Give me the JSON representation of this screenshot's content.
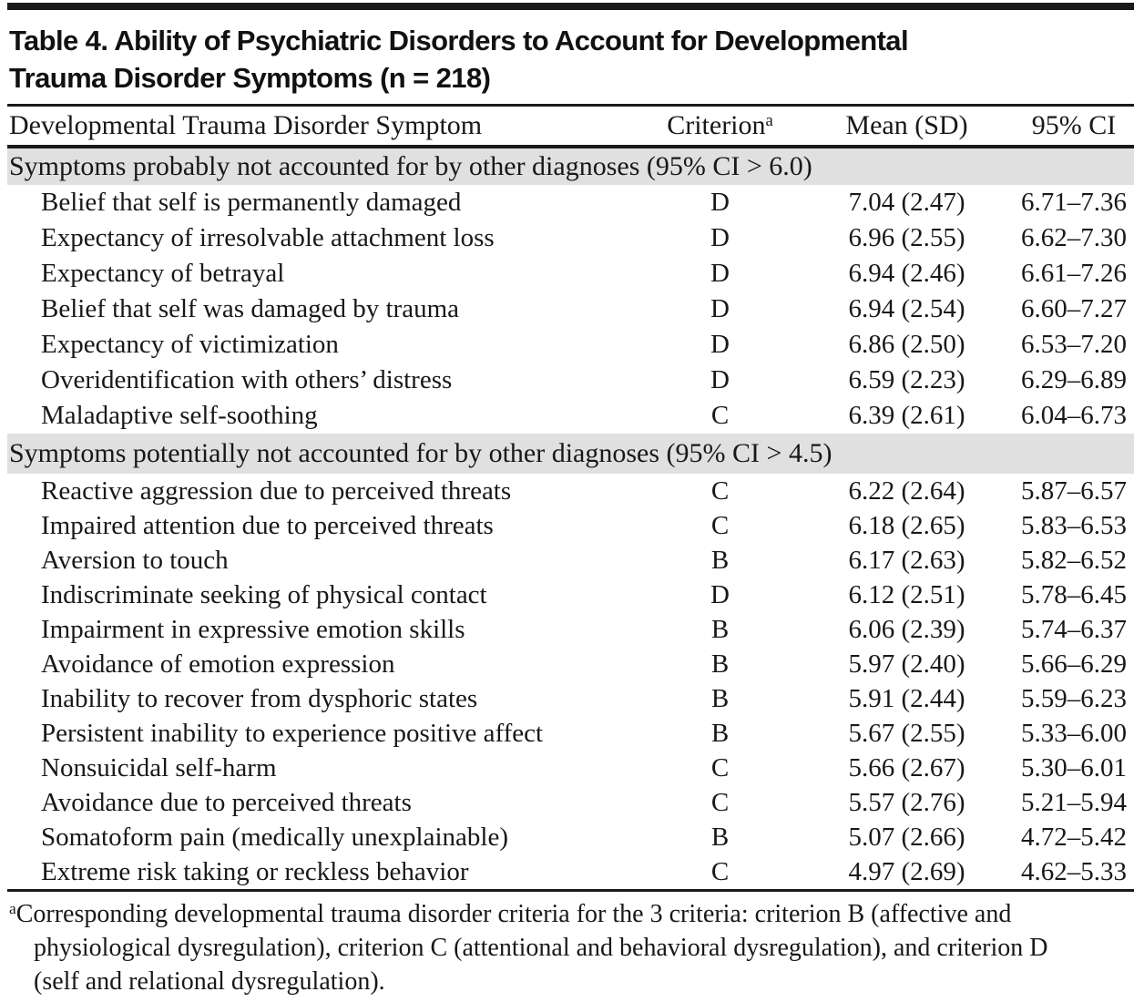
{
  "title": {
    "line1": "Table 4. Ability of Psychiatric Disorders to Account for Developmental",
    "line2": "Trauma Disorder Symptoms (n = 218)"
  },
  "header": {
    "symptom": "Developmental Trauma Disorder Symptom",
    "criterion": "Criterion",
    "criterion_sup": "a",
    "mean_sd": "Mean (SD)",
    "ci": "95% CI"
  },
  "sections": [
    {
      "header": "Symptoms probably not accounted for by other diagnoses (95% CI > 6.0)",
      "rows": [
        {
          "symptom": "Belief that self is permanently damaged",
          "criterion": "D",
          "mean_sd": "7.04 (2.47)",
          "ci": "6.71–7.36"
        },
        {
          "symptom": "Expectancy of irresolvable attachment loss",
          "criterion": "D",
          "mean_sd": "6.96 (2.55)",
          "ci": "6.62–7.30"
        },
        {
          "symptom": "Expectancy of betrayal",
          "criterion": "D",
          "mean_sd": "6.94 (2.46)",
          "ci": "6.61–7.26"
        },
        {
          "symptom": "Belief that self was damaged by trauma",
          "criterion": "D",
          "mean_sd": "6.94 (2.54)",
          "ci": "6.60–7.27"
        },
        {
          "symptom": "Expectancy of victimization",
          "criterion": "D",
          "mean_sd": "6.86 (2.50)",
          "ci": "6.53–7.20"
        },
        {
          "symptom": "Overidentification with others’ distress",
          "criterion": "D",
          "mean_sd": "6.59 (2.23)",
          "ci": "6.29–6.89"
        },
        {
          "symptom": "Maladaptive self-soothing",
          "criterion": "C",
          "mean_sd": "6.39 (2.61)",
          "ci": "6.04–6.73"
        }
      ]
    },
    {
      "header": "Symptoms potentially not accounted for by other diagnoses (95% CI > 4.5)",
      "rows": [
        {
          "symptom": "Reactive aggression due to perceived threats",
          "criterion": "C",
          "mean_sd": "6.22 (2.64)",
          "ci": "5.87–6.57"
        },
        {
          "symptom": "Impaired attention due to perceived threats",
          "criterion": "C",
          "mean_sd": "6.18 (2.65)",
          "ci": "5.83–6.53"
        },
        {
          "symptom": "Aversion to touch",
          "criterion": "B",
          "mean_sd": "6.17 (2.63)",
          "ci": "5.82–6.52"
        },
        {
          "symptom": "Indiscriminate seeking of physical contact",
          "criterion": "D",
          "mean_sd": "6.12 (2.51)",
          "ci": "5.78–6.45"
        },
        {
          "symptom": "Impairment in expressive emotion skills",
          "criterion": "B",
          "mean_sd": "6.06 (2.39)",
          "ci": "5.74–6.37"
        },
        {
          "symptom": "Avoidance of emotion expression",
          "criterion": "B",
          "mean_sd": "5.97 (2.40)",
          "ci": "5.66–6.29"
        },
        {
          "symptom": "Inability to recover from dysphoric states",
          "criterion": "B",
          "mean_sd": "5.91 (2.44)",
          "ci": "5.59–6.23"
        },
        {
          "symptom": "Persistent inability to experience positive affect",
          "criterion": "B",
          "mean_sd": "5.67 (2.55)",
          "ci": "5.33–6.00"
        },
        {
          "symptom": "Nonsuicidal self-harm",
          "criterion": "C",
          "mean_sd": "5.66 (2.67)",
          "ci": "5.30–6.01"
        },
        {
          "symptom": "Avoidance due to perceived threats",
          "criterion": "C",
          "mean_sd": "5.57 (2.76)",
          "ci": "5.21–5.94"
        },
        {
          "symptom": "Somatoform pain (medically unexplainable)",
          "criterion": "B",
          "mean_sd": "5.07 (2.66)",
          "ci": "4.72–5.42"
        },
        {
          "symptom": "Extreme risk taking or reckless behavior",
          "criterion": "C",
          "mean_sd": "4.97 (2.69)",
          "ci": "4.62–5.33"
        }
      ]
    }
  ],
  "footnote": {
    "marker": "a",
    "text": "Corresponding developmental trauma disorder criteria for the 3 criteria: criterion B (affective and physiological dysregulation), criterion C (attentional and behavioral dysregulation), and criterion D (self and relational dysregulation)."
  },
  "colors": {
    "section_band_bg": "#e0e0e0",
    "rule": "#1a1a1a",
    "text": "#181818"
  }
}
